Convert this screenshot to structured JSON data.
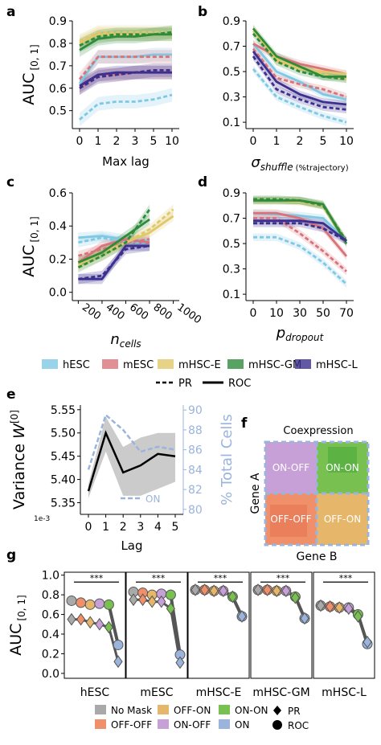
{
  "colors": {
    "hESC": "#7ec8e3",
    "mESC": "#d9737a",
    "mHSC-E": "#e0c86a",
    "mHSC-GM": "#2e8b3c",
    "mHSC-L": "#3b2f8f",
    "gray": "#a9a9a9",
    "off_off": "#f0906a",
    "off_on": "#e6b76a",
    "on_off": "#c8a0d8",
    "on_on": "#78c050",
    "on": "#9bb4dc",
    "variance_line": "#000000",
    "percent_line": "#9bb4dc"
  },
  "chart_data": [
    {
      "panel": "a",
      "type": "line",
      "xlabel": "Max lag",
      "ylabel": "AUC",
      "ylabel_sub": "[0, 1]",
      "categories": [
        "0",
        "1",
        "2",
        "3",
        "5",
        "10"
      ],
      "ylim": [
        0.42,
        0.9
      ],
      "yticks": [
        "0.5",
        "0.6",
        "0.7",
        "0.8",
        "0.9"
      ],
      "ytick_values": [
        0.5,
        0.6,
        0.7,
        0.8,
        0.9
      ],
      "series": [
        {
          "name": "hESC",
          "style": "PR",
          "values": [
            0.46,
            0.53,
            0.54,
            0.54,
            0.55,
            0.57
          ]
        },
        {
          "name": "hESC",
          "style": "ROC",
          "values": [
            0.62,
            0.74,
            0.74,
            0.74,
            0.75,
            0.75
          ]
        },
        {
          "name": "mESC",
          "style": "PR",
          "values": [
            0.64,
            0.74,
            0.74,
            0.74,
            0.74,
            0.74
          ]
        },
        {
          "name": "mESC",
          "style": "ROC",
          "values": [
            0.6,
            0.66,
            0.66,
            0.67,
            0.67,
            0.67
          ]
        },
        {
          "name": "mHSC-E",
          "style": "PR",
          "values": [
            0.81,
            0.85,
            0.85,
            0.85,
            0.85,
            0.85
          ]
        },
        {
          "name": "mHSC-E",
          "style": "ROC",
          "values": [
            0.8,
            0.84,
            0.84,
            0.84,
            0.84,
            0.84
          ]
        },
        {
          "name": "mHSC-GM",
          "style": "PR",
          "values": [
            0.79,
            0.83,
            0.84,
            0.84,
            0.84,
            0.85
          ]
        },
        {
          "name": "mHSC-GM",
          "style": "ROC",
          "values": [
            0.77,
            0.82,
            0.83,
            0.83,
            0.84,
            0.84
          ]
        },
        {
          "name": "mHSC-L",
          "style": "PR",
          "values": [
            0.6,
            0.65,
            0.66,
            0.67,
            0.68,
            0.68
          ]
        },
        {
          "name": "mHSC-L",
          "style": "ROC",
          "values": [
            0.61,
            0.66,
            0.67,
            0.67,
            0.67,
            0.67
          ]
        }
      ]
    },
    {
      "panel": "b",
      "type": "line",
      "xlabel": "σ",
      "xlabel_sub": "shuffle",
      "xlabel_suffix": "(%trajectory)",
      "categories": [
        "0",
        "1",
        "2",
        "5",
        "10"
      ],
      "ylim": [
        0.05,
        0.9
      ],
      "yticks": [
        "0.1",
        "0.3",
        "0.5",
        "0.7",
        "0.9"
      ],
      "ytick_values": [
        0.1,
        0.3,
        0.5,
        0.7,
        0.9
      ],
      "series": [
        {
          "name": "hESC",
          "style": "PR",
          "values": [
            0.52,
            0.3,
            0.22,
            0.15,
            0.1
          ]
        },
        {
          "name": "hESC",
          "style": "ROC",
          "values": [
            0.72,
            0.5,
            0.42,
            0.32,
            0.28
          ]
        },
        {
          "name": "mESC",
          "style": "PR",
          "values": [
            0.68,
            0.45,
            0.4,
            0.36,
            0.3
          ]
        },
        {
          "name": "mESC",
          "style": "ROC",
          "values": [
            0.72,
            0.62,
            0.56,
            0.52,
            0.48
          ]
        },
        {
          "name": "mHSC-E",
          "style": "PR",
          "values": [
            0.84,
            0.58,
            0.54,
            0.48,
            0.44
          ]
        },
        {
          "name": "mHSC-E",
          "style": "ROC",
          "values": [
            0.82,
            0.6,
            0.52,
            0.5,
            0.48
          ]
        },
        {
          "name": "mHSC-GM",
          "style": "PR",
          "values": [
            0.8,
            0.58,
            0.5,
            0.46,
            0.44
          ]
        },
        {
          "name": "mHSC-GM",
          "style": "ROC",
          "values": [
            0.84,
            0.62,
            0.54,
            0.46,
            0.46
          ]
        },
        {
          "name": "mHSC-L",
          "style": "PR",
          "values": [
            0.62,
            0.36,
            0.28,
            0.22,
            0.2
          ]
        },
        {
          "name": "mHSC-L",
          "style": "ROC",
          "values": [
            0.66,
            0.42,
            0.32,
            0.26,
            0.24
          ]
        }
      ]
    },
    {
      "panel": "c",
      "type": "line",
      "xlabel": "n",
      "xlabel_sub": "cells",
      "ylabel": "AUC",
      "ylabel_sub": "[0, 1]",
      "xlim": [
        150,
        1050
      ],
      "xticks": [
        "200",
        "400",
        "600",
        "800",
        "1000"
      ],
      "xtick_values": [
        200,
        400,
        600,
        800,
        1000
      ],
      "ylim": [
        -0.05,
        0.6
      ],
      "yticks": [
        "0.0",
        "0.2",
        "0.4",
        "0.6"
      ],
      "ytick_values": [
        0.0,
        0.2,
        0.4,
        0.6
      ],
      "series": [
        {
          "name": "hESC",
          "style": "PR",
          "x": [
            200,
            400,
            600,
            800
          ],
          "values": [
            0.3,
            0.33,
            0.3,
            0.3
          ]
        },
        {
          "name": "hESC",
          "style": "ROC",
          "x": [
            200,
            400,
            600,
            800
          ],
          "values": [
            0.33,
            0.34,
            0.32,
            0.31
          ]
        },
        {
          "name": "mESC",
          "style": "PR",
          "x": [
            200,
            400,
            600,
            800
          ],
          "values": [
            0.22,
            0.26,
            0.3,
            0.32
          ]
        },
        {
          "name": "mESC",
          "style": "ROC",
          "x": [
            200,
            400,
            600,
            800
          ],
          "values": [
            0.18,
            0.28,
            0.32,
            0.3
          ]
        },
        {
          "name": "mHSC-E",
          "style": "PR",
          "x": [
            200,
            400,
            600,
            800,
            1000
          ],
          "values": [
            0.16,
            0.22,
            0.3,
            0.38,
            0.5
          ]
        },
        {
          "name": "mHSC-E",
          "style": "ROC",
          "x": [
            200,
            400,
            600,
            800,
            1000
          ],
          "values": [
            0.17,
            0.24,
            0.3,
            0.36,
            0.46
          ]
        },
        {
          "name": "mHSC-GM",
          "style": "PR",
          "x": [
            200,
            400,
            600,
            800
          ],
          "values": [
            0.15,
            0.22,
            0.3,
            0.5
          ]
        },
        {
          "name": "mHSC-GM",
          "style": "ROC",
          "x": [
            200,
            400,
            600,
            800
          ],
          "values": [
            0.18,
            0.24,
            0.34,
            0.44
          ]
        },
        {
          "name": "mHSC-L",
          "style": "PR",
          "x": [
            200,
            400,
            600,
            800
          ],
          "values": [
            0.08,
            0.1,
            0.26,
            0.28
          ]
        },
        {
          "name": "mHSC-L",
          "style": "ROC",
          "x": [
            200,
            400,
            600,
            800
          ],
          "values": [
            0.08,
            0.08,
            0.28,
            0.28
          ]
        }
      ]
    },
    {
      "panel": "d",
      "type": "line",
      "xlabel": "p",
      "xlabel_sub": "dropout",
      "categories": [
        "0",
        "10",
        "30",
        "50",
        "70"
      ],
      "ylim": [
        0.05,
        0.9
      ],
      "yticks": [
        "0.1",
        "0.3",
        "0.5",
        "0.7",
        "0.9"
      ],
      "ytick_values": [
        0.1,
        0.3,
        0.5,
        0.7,
        0.9
      ],
      "series": [
        {
          "name": "hESC",
          "style": "PR",
          "values": [
            0.55,
            0.55,
            0.48,
            0.35,
            0.18
          ]
        },
        {
          "name": "hESC",
          "style": "ROC",
          "values": [
            0.74,
            0.73,
            0.72,
            0.7,
            0.52
          ]
        },
        {
          "name": "mESC",
          "style": "PR",
          "values": [
            0.7,
            0.7,
            0.58,
            0.44,
            0.28
          ]
        },
        {
          "name": "mESC",
          "style": "ROC",
          "values": [
            0.74,
            0.74,
            0.7,
            0.62,
            0.4
          ]
        },
        {
          "name": "mHSC-E",
          "style": "PR",
          "values": [
            0.84,
            0.84,
            0.84,
            0.8,
            0.52
          ]
        },
        {
          "name": "mHSC-E",
          "style": "ROC",
          "values": [
            0.84,
            0.84,
            0.83,
            0.8,
            0.5
          ]
        },
        {
          "name": "mHSC-GM",
          "style": "PR",
          "values": [
            0.85,
            0.85,
            0.84,
            0.8,
            0.52
          ]
        },
        {
          "name": "mHSC-GM",
          "style": "ROC",
          "values": [
            0.84,
            0.84,
            0.84,
            0.81,
            0.5
          ]
        },
        {
          "name": "mHSC-L",
          "style": "PR",
          "values": [
            0.66,
            0.66,
            0.66,
            0.62,
            0.52
          ]
        },
        {
          "name": "mHSC-L",
          "style": "ROC",
          "values": [
            0.68,
            0.68,
            0.68,
            0.66,
            0.52
          ]
        }
      ]
    },
    {
      "panel": "e",
      "type": "line",
      "xlabel": "Lag",
      "ylabel": "Variance",
      "ylabel_sym": "W",
      "ylabel_sup": "[0]",
      "y2label": "% Total Cells",
      "offset_text": "1e-3",
      "categories": [
        "0",
        "1",
        "2",
        "3",
        "4",
        "5"
      ],
      "ylim": [
        5.325,
        5.56
      ],
      "yticks": [
        "5.35",
        "5.40",
        "5.45",
        "5.50",
        "5.55"
      ],
      "ytick_values": [
        5.35,
        5.4,
        5.45,
        5.5,
        5.55
      ],
      "y2lim": [
        79.5,
        90.5
      ],
      "y2ticks": [
        "80",
        "82",
        "84",
        "86",
        "88",
        "90"
      ],
      "y2tick_values": [
        80,
        82,
        84,
        86,
        88,
        90
      ],
      "variance": [
        5.375,
        5.5,
        5.415,
        5.43,
        5.455,
        5.45
      ],
      "variance_band_low": [
        5.36,
        5.46,
        5.365,
        5.365,
        5.38,
        5.395
      ],
      "variance_band_high": [
        5.39,
        5.535,
        5.47,
        5.49,
        5.5,
        5.5
      ],
      "on_series_name": "ON",
      "on_percent": [
        84.0,
        89.5,
        88.0,
        85.8,
        86.3,
        86.0
      ]
    },
    {
      "panel": "g",
      "type": "line",
      "ylabel": "AUC",
      "ylabel_sub": "[0, 1]",
      "ylim": [
        -0.05,
        1.03
      ],
      "yticks": [
        "0.0",
        "0.2",
        "0.4",
        "0.6",
        "0.8",
        "1.0"
      ],
      "ytick_values": [
        0.0,
        0.2,
        0.4,
        0.6,
        0.8,
        1.0
      ],
      "mask_order": [
        "No Mask",
        "OFF-OFF",
        "OFF-ON",
        "ON-OFF",
        "ON-ON",
        "ON"
      ],
      "significance": "***",
      "groups": [
        {
          "name": "hESC",
          "roc": [
            0.74,
            0.72,
            0.7,
            0.71,
            0.7,
            0.29
          ],
          "pr": [
            0.55,
            0.55,
            0.52,
            0.5,
            0.47,
            0.12
          ]
        },
        {
          "name": "mESC",
          "roc": [
            0.83,
            0.82,
            0.8,
            0.81,
            0.8,
            0.19
          ],
          "pr": [
            0.75,
            0.75,
            0.73,
            0.73,
            0.66,
            0.11
          ]
        },
        {
          "name": "mHSC-E",
          "roc": [
            0.85,
            0.85,
            0.84,
            0.84,
            0.78,
            0.58
          ],
          "pr": [
            0.85,
            0.85,
            0.84,
            0.84,
            0.78,
            0.58
          ]
        },
        {
          "name": "mHSC-GM",
          "roc": [
            0.85,
            0.85,
            0.84,
            0.84,
            0.78,
            0.56
          ],
          "pr": [
            0.85,
            0.85,
            0.84,
            0.84,
            0.77,
            0.56
          ]
        },
        {
          "name": "mHSC-L",
          "roc": [
            0.69,
            0.68,
            0.67,
            0.67,
            0.6,
            0.3
          ],
          "pr": [
            0.69,
            0.68,
            0.67,
            0.66,
            0.58,
            0.32
          ]
        }
      ]
    }
  ],
  "panel_letters": {
    "a": "a",
    "b": "b",
    "c": "c",
    "d": "d",
    "e": "e",
    "f": "f",
    "g": "g"
  },
  "legend_main": {
    "items": [
      "hESC",
      "mESC",
      "mHSC-E",
      "mHSC-GM",
      "mHSC-L"
    ],
    "styles": [
      "PR",
      "ROC"
    ]
  },
  "panel_f": {
    "title": "Coexpression",
    "xlabel": "Gene B",
    "ylabel": "Gene A",
    "quadrants": {
      "top_left": "ON-OFF",
      "top_right": "ON-ON",
      "bottom_left": "OFF-OFF",
      "bottom_right": "OFF-ON"
    }
  },
  "legend_g": {
    "items": [
      "No Mask",
      "OFF-ON",
      "ON-ON",
      "OFF-OFF",
      "ON-OFF",
      "ON"
    ],
    "markers": [
      "PR",
      "ROC"
    ]
  }
}
